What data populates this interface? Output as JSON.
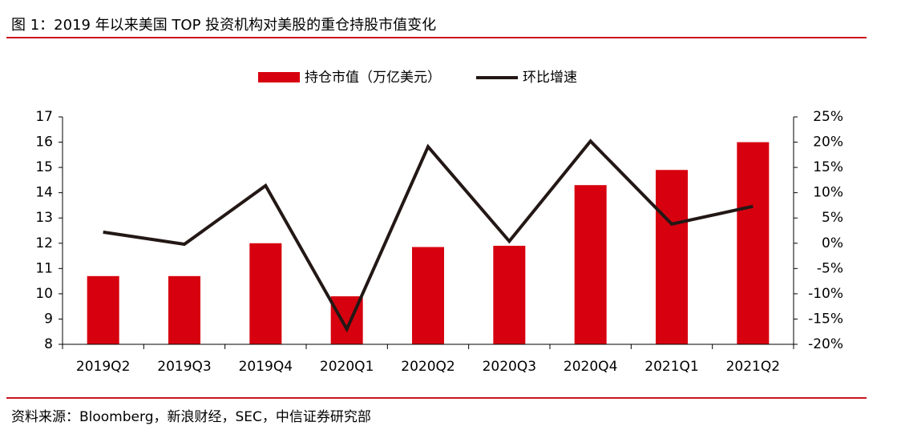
{
  "title": "图 1：2019 年以来美国 TOP 投资机构对美股的重仓持股市值变化",
  "source": "资料来源：Bloomberg，新浪财经，SEC，中信证券研究部",
  "chart_data": {
    "type": "bar-line",
    "categories": [
      "2019Q2",
      "2019Q3",
      "2019Q4",
      "2020Q1",
      "2020Q2",
      "2020Q3",
      "2020Q4",
      "2021Q1",
      "2021Q2"
    ],
    "series": [
      {
        "name": "持仓市值（万亿美元）",
        "type": "bar",
        "color": "#d7000f",
        "values": [
          10.7,
          10.7,
          12.0,
          9.9,
          11.85,
          11.9,
          14.3,
          14.9,
          16.0
        ]
      },
      {
        "name": "环比增速",
        "type": "line",
        "axis": "y2",
        "color": "#231815",
        "values": [
          2.2,
          -0.2,
          11.4,
          -17,
          19.1,
          0.4,
          20.2,
          3.8,
          7.3
        ]
      }
    ],
    "ylim": [
      8,
      17
    ],
    "yticks": [
      8,
      9,
      10,
      11,
      12,
      13,
      14,
      15,
      16,
      17
    ],
    "y2lim": [
      -20,
      25
    ],
    "y2ticks": [
      {
        "value": -20,
        "label": "-20%"
      },
      {
        "value": -15,
        "label": "-15%"
      },
      {
        "value": -10,
        "label": "-10%"
      },
      {
        "value": -5,
        "label": "-5%"
      },
      {
        "value": 0,
        "label": "0%"
      },
      {
        "value": 5,
        "label": "5%"
      },
      {
        "value": 10,
        "label": "10%"
      },
      {
        "value": 15,
        "label": "15%"
      },
      {
        "value": 20,
        "label": "20%"
      },
      {
        "value": 25,
        "label": "25%"
      }
    ],
    "legend": "top"
  }
}
